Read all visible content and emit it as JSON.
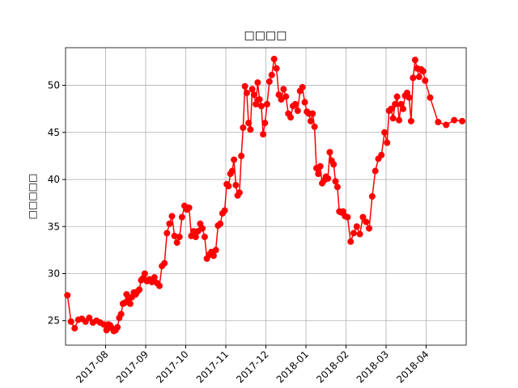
{
  "chart_data": {
    "type": "line",
    "title": "□□□□",
    "y_label": "□□□□□",
    "color": "#ff0000",
    "grid": true,
    "x": [
      "2017-07",
      "2017-07",
      "2017-07",
      "2017-07",
      "2017-07",
      "2017-07",
      "2017-07",
      "2017-07",
      "2017-07",
      "2017-07",
      "2017-07",
      "2017-08",
      "2017-08",
      "2017-08",
      "2017-08",
      "2017-08",
      "2017-08",
      "2017-08",
      "2017-08",
      "2017-08",
      "2017-08",
      "2017-08",
      "2017-08",
      "2017-08",
      "2017-08",
      "2017-08",
      "2017-08",
      "2017-08",
      "2017-08",
      "2017-08",
      "2017-08",
      "2017-08",
      "2017-08",
      "2017-09",
      "2017-09",
      "2017-09",
      "2017-09",
      "2017-09",
      "2017-09",
      "2017-09",
      "2017-09",
      "2017-09",
      "2017-09",
      "2017-09",
      "2017-09",
      "2017-09",
      "2017-09",
      "2017-09",
      "2017-09",
      "2017-10",
      "2017-10",
      "2017-10",
      "2017-10",
      "2017-10",
      "2017-10",
      "2017-10",
      "2017-10",
      "2017-10",
      "2017-10",
      "2017-10",
      "2017-10",
      "2017-10",
      "2017-10",
      "2017-10",
      "2017-10",
      "2017-10",
      "2017-10",
      "2017-11",
      "2017-11",
      "2017-11",
      "2017-11",
      "2017-11",
      "2017-11",
      "2017-11",
      "2017-11",
      "2017-11",
      "2017-11",
      "2017-11",
      "2017-11",
      "2017-11",
      "2017-11",
      "2017-11",
      "2017-11",
      "2017-11",
      "2017-11",
      "2017-11",
      "2017-11",
      "2017-11",
      "2017-11",
      "2017-12",
      "2017-12",
      "2017-12",
      "2017-12",
      "2017-12",
      "2017-12",
      "2017-12",
      "2017-12",
      "2017-12",
      "2017-12",
      "2017-12",
      "2017-12",
      "2017-12",
      "2017-12",
      "2017-12",
      "2017-12",
      "2017-12",
      "2018-01",
      "2018-01",
      "2018-01",
      "2018-01",
      "2018-01",
      "2018-01",
      "2018-01",
      "2018-01",
      "2018-01",
      "2018-01",
      "2018-01",
      "2018-01",
      "2018-01",
      "2018-01",
      "2018-01",
      "2018-01",
      "2018-01",
      "2018-01",
      "2018-01",
      "2018-01",
      "2018-01",
      "2018-02",
      "2018-02",
      "2018-02",
      "2018-02",
      "2018-02",
      "2018-02",
      "2018-02",
      "2018-02",
      "2018-02",
      "2018-02",
      "2018-02",
      "2018-02",
      "2018-02",
      "2018-03",
      "2018-03",
      "2018-03",
      "2018-03",
      "2018-03",
      "2018-03",
      "2018-03",
      "2018-03",
      "2018-03",
      "2018-03",
      "2018-03",
      "2018-03",
      "2018-03",
      "2018-03",
      "2018-03",
      "2018-03",
      "2018-03",
      "2018-03",
      "2018-03",
      "2018-03",
      "2018-04",
      "2018-04",
      "2018-04",
      "2018-04",
      "2018-04"
    ],
    "values": [
      27.7,
      24.9,
      24.2,
      25.1,
      25.2,
      24.9,
      25.3,
      24.8,
      25.0,
      24.8,
      24.6,
      24.0,
      24.6,
      24.5,
      24.2,
      23.9,
      24.0,
      24.3,
      25.3,
      25.7,
      26.8,
      26.9,
      27.8,
      27.2,
      26.8,
      27.5,
      28.0,
      27.8,
      28.1,
      28.3,
      29.3,
      29.5,
      30.0,
      29.2,
      29.4,
      29.1,
      29.6,
      29.0,
      28.7,
      30.8,
      31.1,
      34.3,
      35.3,
      36.1,
      34.0,
      33.3,
      33.9,
      36.0,
      37.2,
      36.8,
      37.0,
      34.0,
      34.5,
      33.9,
      34.5,
      35.3,
      34.8,
      33.9,
      31.6,
      32.0,
      32.3,
      31.9,
      32.5,
      35.1,
      35.3,
      36.4,
      36.7,
      39.5,
      39.3,
      40.6,
      40.9,
      42.1,
      39.4,
      38.3,
      38.6,
      42.5,
      45.5,
      49.9,
      49.2,
      46.0,
      45.3,
      49.6,
      49.0,
      48.0,
      50.3,
      48.5,
      47.8,
      44.8,
      46.0,
      48.0,
      50.4,
      51.1,
      52.8,
      51.8,
      49.0,
      48.5,
      49.6,
      48.8,
      47.0,
      46.6,
      47.8,
      48.0,
      47.3,
      49.4,
      49.8,
      48.2,
      47.2,
      47.0,
      46.2,
      47.0,
      45.6,
      41.2,
      40.6,
      41.4,
      39.6,
      39.9,
      40.3,
      40.1,
      42.9,
      42.0,
      41.6,
      39.8,
      39.2,
      36.6,
      36.5,
      36.6,
      36.1,
      36.0,
      33.4,
      34.3,
      35.0,
      34.2,
      36.0,
      35.5,
      34.8,
      38.2,
      40.9,
      42.2,
      42.6,
      45.0,
      43.9,
      47.3,
      47.5,
      46.5,
      48.0,
      48.8,
      46.3,
      48.0,
      47.5,
      48.9,
      49.2,
      48.7,
      46.2,
      50.8,
      52.7,
      51.8,
      50.9,
      51.7,
      51.5,
      50.5,
      48.7,
      46.1,
      45.8,
      46.3,
      46.2
    ],
    "xlim": [
      "2017-07",
      "2018-05"
    ],
    "xticks": [
      "2017-08",
      "2017-09",
      "2017-10",
      "2017-11",
      "2017-12",
      "2018-01",
      "2018-02",
      "2018-03",
      "2018-04"
    ],
    "ylim": [
      22.4,
      54.0
    ],
    "yticks": [
      25,
      30,
      35,
      40,
      45,
      50
    ]
  }
}
